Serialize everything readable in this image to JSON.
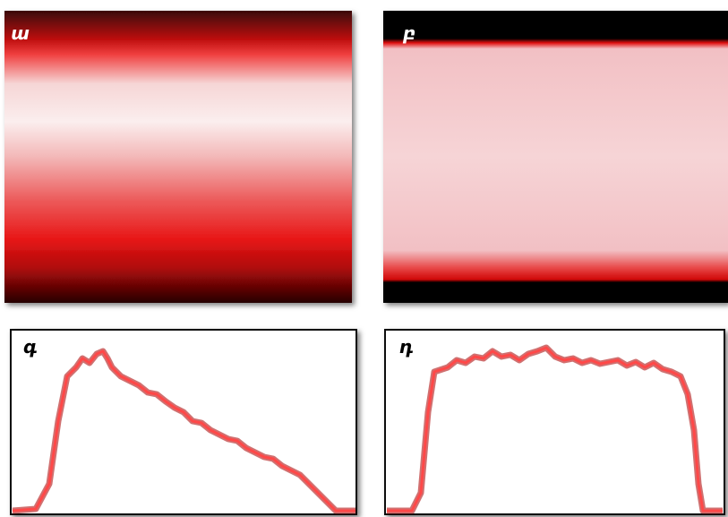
{
  "panels": [
    {
      "label": "ա"
    },
    {
      "label": "բ"
    },
    {
      "label": "գ"
    },
    {
      "label": "դ"
    }
  ]
}
